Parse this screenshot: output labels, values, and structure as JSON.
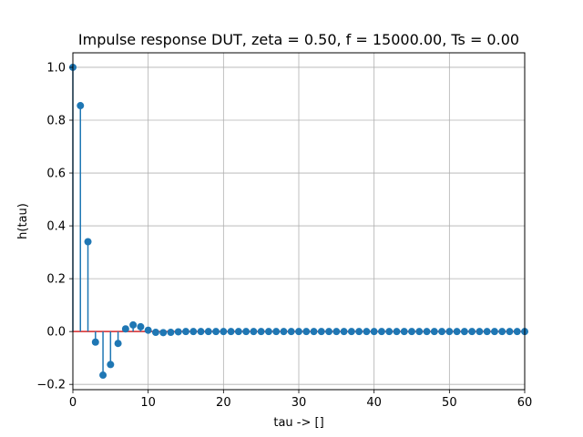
{
  "chart_data": {
    "type": "stem",
    "title": "Impulse response DUT, zeta = 0.50, f = 15000.00, Ts = 0.00",
    "xlabel": "tau -> []",
    "ylabel": "h(tau)",
    "xlim": [
      0,
      60
    ],
    "ylim": [
      -0.22,
      1.055
    ],
    "xticks": [
      0,
      10,
      20,
      30,
      40,
      50,
      60
    ],
    "yticks": [
      -0.2,
      0.0,
      0.2,
      0.4,
      0.6,
      0.8,
      1.0
    ],
    "ytick_labels": [
      "−0.2",
      "0.0",
      "0.2",
      "0.4",
      "0.6",
      "0.8",
      "1.0"
    ],
    "grid": true,
    "baseline": 0,
    "colors": {
      "stem": "#1f77b4",
      "baseline": "#d62728",
      "grid": "#b0b0b0"
    },
    "x": [
      0,
      1,
      2,
      3,
      4,
      5,
      6,
      7,
      8,
      9,
      10,
      11,
      12,
      13,
      14,
      15,
      16,
      17,
      18,
      19,
      20,
      21,
      22,
      23,
      24,
      25,
      26,
      27,
      28,
      29,
      30,
      31,
      32,
      33,
      34,
      35,
      36,
      37,
      38,
      39,
      40,
      41,
      42,
      43,
      44,
      45,
      46,
      47,
      48,
      49,
      50,
      51,
      52,
      53,
      54,
      55,
      56,
      57,
      58,
      59,
      60
    ],
    "values": [
      1.0,
      0.855,
      0.34,
      -0.04,
      -0.165,
      -0.125,
      -0.045,
      0.01,
      0.025,
      0.018,
      0.005,
      -0.003,
      -0.004,
      -0.003,
      -0.001,
      0.0,
      0.0,
      0.0,
      0.0,
      0.0,
      0.0,
      0.0,
      0.0,
      0.0,
      0.0,
      0.0,
      0.0,
      0.0,
      0.0,
      0.0,
      0.0,
      0.0,
      0.0,
      0.0,
      0.0,
      0.0,
      0.0,
      0.0,
      0.0,
      0.0,
      0.0,
      0.0,
      0.0,
      0.0,
      0.0,
      0.0,
      0.0,
      0.0,
      0.0,
      0.0,
      0.0,
      0.0,
      0.0,
      0.0,
      0.0,
      0.0,
      0.0,
      0.0,
      0.0,
      0.0,
      0.0
    ]
  }
}
